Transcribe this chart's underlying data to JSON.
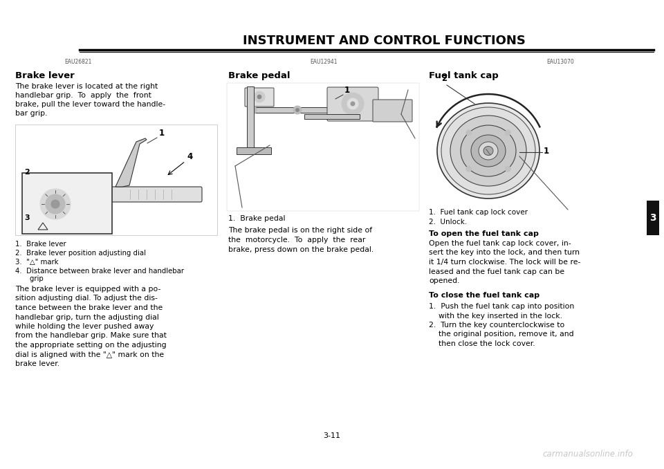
{
  "bg_color": "#ffffff",
  "title": "INSTRUMENT AND CONTROL FUNCTIONS",
  "page_number": "3-11",
  "tab_number": "3",
  "col1_heading_small": "EAU26821",
  "col1_heading": "Brake lever",
  "col1_text1": "The brake lever is located at the right\nhandlebar grip.  To  apply  the  front\nbrake, pull the lever toward the handle-\nbar grip.",
  "col1_labels": [
    "1.  Brake lever",
    "2.  Brake lever position adjusting dial",
    "3.  \"△\" mark",
    "4.  Distance between brake lever and handlebar\n    grip"
  ],
  "col1_text2": "The brake lever is equipped with a po-\nsition adjusting dial. To adjust the dis-\ntance between the brake lever and the\nhandlebar grip, turn the adjusting dial\nwhile holding the lever pushed away\nfrom the handlebar grip. Make sure that\nthe appropriate setting on the adjusting\ndial is aligned with the \"△\" mark on the\nbrake lever.",
  "col2_heading_small": "EAU12941",
  "col2_heading": "Brake pedal",
  "col2_label": "1.  Brake pedal",
  "col2_text": "The brake pedal is on the right side of\nthe  motorcycle.  To  apply  the  rear\nbrake, press down on the brake pedal.",
  "col3_heading_small": "EAU13070",
  "col3_heading": "Fuel tank cap",
  "col3_labels": [
    "1.  Fuel tank cap lock cover",
    "2.  Unlock."
  ],
  "col3_heading2": "To open the fuel tank cap",
  "col3_text2": "Open the fuel tank cap lock cover, in-\nsert the key into the lock, and then turn\nit 1/4 turn clockwise. The lock will be re-\nleased and the fuel tank cap can be\nopened.",
  "col3_heading3": "To close the fuel tank cap",
  "col3_list": [
    "Push the fuel tank cap into position\nwith the key inserted in the lock.",
    "Turn the key counterclockwise to\nthe original position, remove it, and\nthen close the lock cover."
  ],
  "watermark": "carmanualsonline.info",
  "watermark_color": "#c8c8c8"
}
